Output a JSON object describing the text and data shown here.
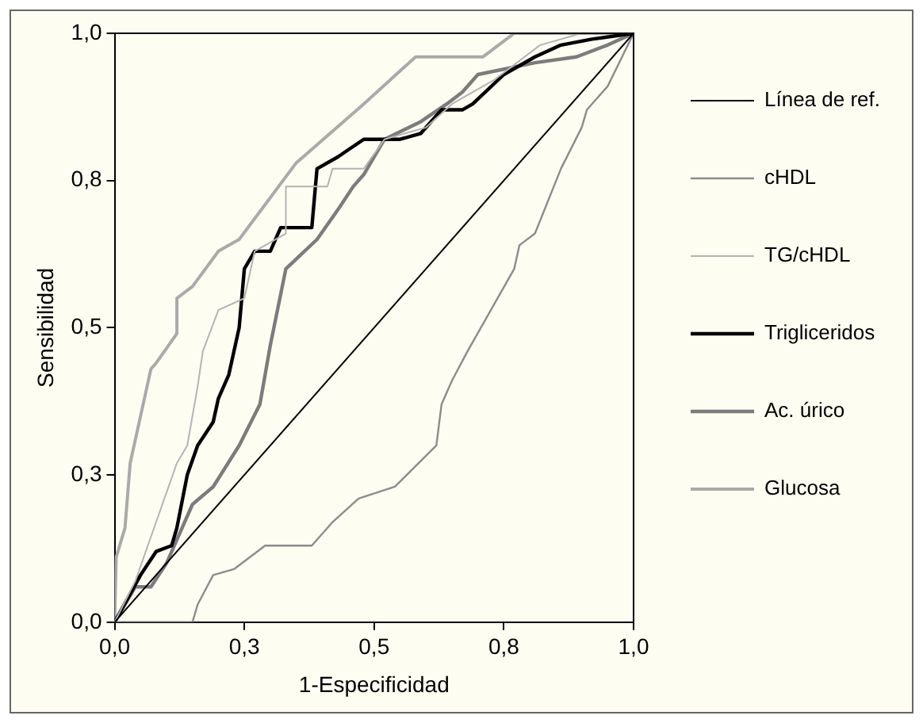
{
  "chart_data": {
    "type": "line",
    "xlabel": "1-Especificidad",
    "ylabel": "Sensibilidad",
    "xlim": [
      0,
      1
    ],
    "ylim": [
      0,
      1
    ],
    "xticks": [
      {
        "value": 0,
        "label": "0,0"
      },
      {
        "value": 0.25,
        "label": "0,3"
      },
      {
        "value": 0.5,
        "label": "0,5"
      },
      {
        "value": 0.75,
        "label": "0,8"
      },
      {
        "value": 1,
        "label": "1,0"
      }
    ],
    "yticks": [
      {
        "value": 0,
        "label": "0,0"
      },
      {
        "value": 0.25,
        "label": "0,3"
      },
      {
        "value": 0.5,
        "label": "0,5"
      },
      {
        "value": 0.75,
        "label": "0,8"
      },
      {
        "value": 1,
        "label": "1,0"
      }
    ],
    "grid": false,
    "legend": "right",
    "marker": "none",
    "series": [
      {
        "name": "Línea de ref.",
        "color": "#000000",
        "x": [
          0,
          1
        ],
        "values": [
          0,
          1
        ]
      },
      {
        "name": "cHDL",
        "color": "#8c8c8c",
        "x": [
          0,
          0.15,
          0.16,
          0.19,
          0.23,
          0.29,
          0.38,
          0.42,
          0.47,
          0.54,
          0.62,
          0.63,
          0.65,
          0.68,
          0.77,
          0.78,
          0.81,
          0.86,
          0.9,
          0.91,
          0.95,
          1
        ],
        "values": [
          0,
          0,
          0.03,
          0.08,
          0.09,
          0.13,
          0.13,
          0.17,
          0.21,
          0.23,
          0.3,
          0.37,
          0.41,
          0.46,
          0.6,
          0.64,
          0.66,
          0.77,
          0.84,
          0.87,
          0.91,
          1
        ]
      },
      {
        "name": "TG/cHDL",
        "color": "#b4b4b4",
        "x": [
          0,
          0.04,
          0.08,
          0.1,
          0.12,
          0.14,
          0.16,
          0.17,
          0.2,
          0.25,
          0.27,
          0.33,
          0.33,
          0.41,
          0.42,
          0.48,
          0.52,
          0.6,
          0.65,
          0.73,
          0.82,
          0.9,
          1
        ],
        "values": [
          0,
          0.07,
          0.17,
          0.22,
          0.27,
          0.3,
          0.4,
          0.46,
          0.53,
          0.55,
          0.63,
          0.66,
          0.74,
          0.74,
          0.77,
          0.77,
          0.82,
          0.84,
          0.88,
          0.92,
          0.98,
          1,
          1
        ]
      },
      {
        "name": "Trigliceridos",
        "color": "#000000",
        "x": [
          0,
          0.05,
          0.08,
          0.11,
          0.12,
          0.14,
          0.16,
          0.19,
          0.2,
          0.22,
          0.24,
          0.25,
          0.27,
          0.3,
          0.32,
          0.38,
          0.39,
          0.43,
          0.48,
          0.55,
          0.59,
          0.63,
          0.67,
          0.69,
          0.75,
          0.81,
          0.86,
          0.92,
          1
        ],
        "values": [
          0,
          0.08,
          0.12,
          0.13,
          0.16,
          0.25,
          0.3,
          0.34,
          0.38,
          0.42,
          0.5,
          0.6,
          0.63,
          0.63,
          0.67,
          0.67,
          0.77,
          0.79,
          0.82,
          0.82,
          0.83,
          0.87,
          0.87,
          0.88,
          0.93,
          0.96,
          0.98,
          0.99,
          1
        ]
      },
      {
        "name": "Ac. úrico",
        "color": "#7c7c7c",
        "x": [
          0,
          0.04,
          0.07,
          0.1,
          0.12,
          0.15,
          0.19,
          0.24,
          0.28,
          0.3,
          0.33,
          0.39,
          0.43,
          0.46,
          0.48,
          0.52,
          0.59,
          0.64,
          0.67,
          0.7,
          0.81,
          0.89,
          0.95,
          1
        ],
        "values": [
          0,
          0.06,
          0.06,
          0.1,
          0.14,
          0.2,
          0.23,
          0.3,
          0.37,
          0.47,
          0.6,
          0.65,
          0.7,
          0.74,
          0.76,
          0.82,
          0.85,
          0.88,
          0.9,
          0.93,
          0.95,
          0.96,
          0.98,
          1
        ]
      },
      {
        "name": "Glucosa",
        "color": "#aaaaaa",
        "x": [
          0,
          0.003,
          0.02,
          0.03,
          0.05,
          0.07,
          0.08,
          0.12,
          0.12,
          0.15,
          0.2,
          0.24,
          0.35,
          0.48,
          0.58,
          0.71,
          0.77,
          1
        ],
        "values": [
          0,
          0.11,
          0.16,
          0.27,
          0.35,
          0.43,
          0.44,
          0.49,
          0.55,
          0.57,
          0.63,
          0.65,
          0.78,
          0.88,
          0.96,
          0.96,
          1,
          1
        ]
      }
    ]
  }
}
